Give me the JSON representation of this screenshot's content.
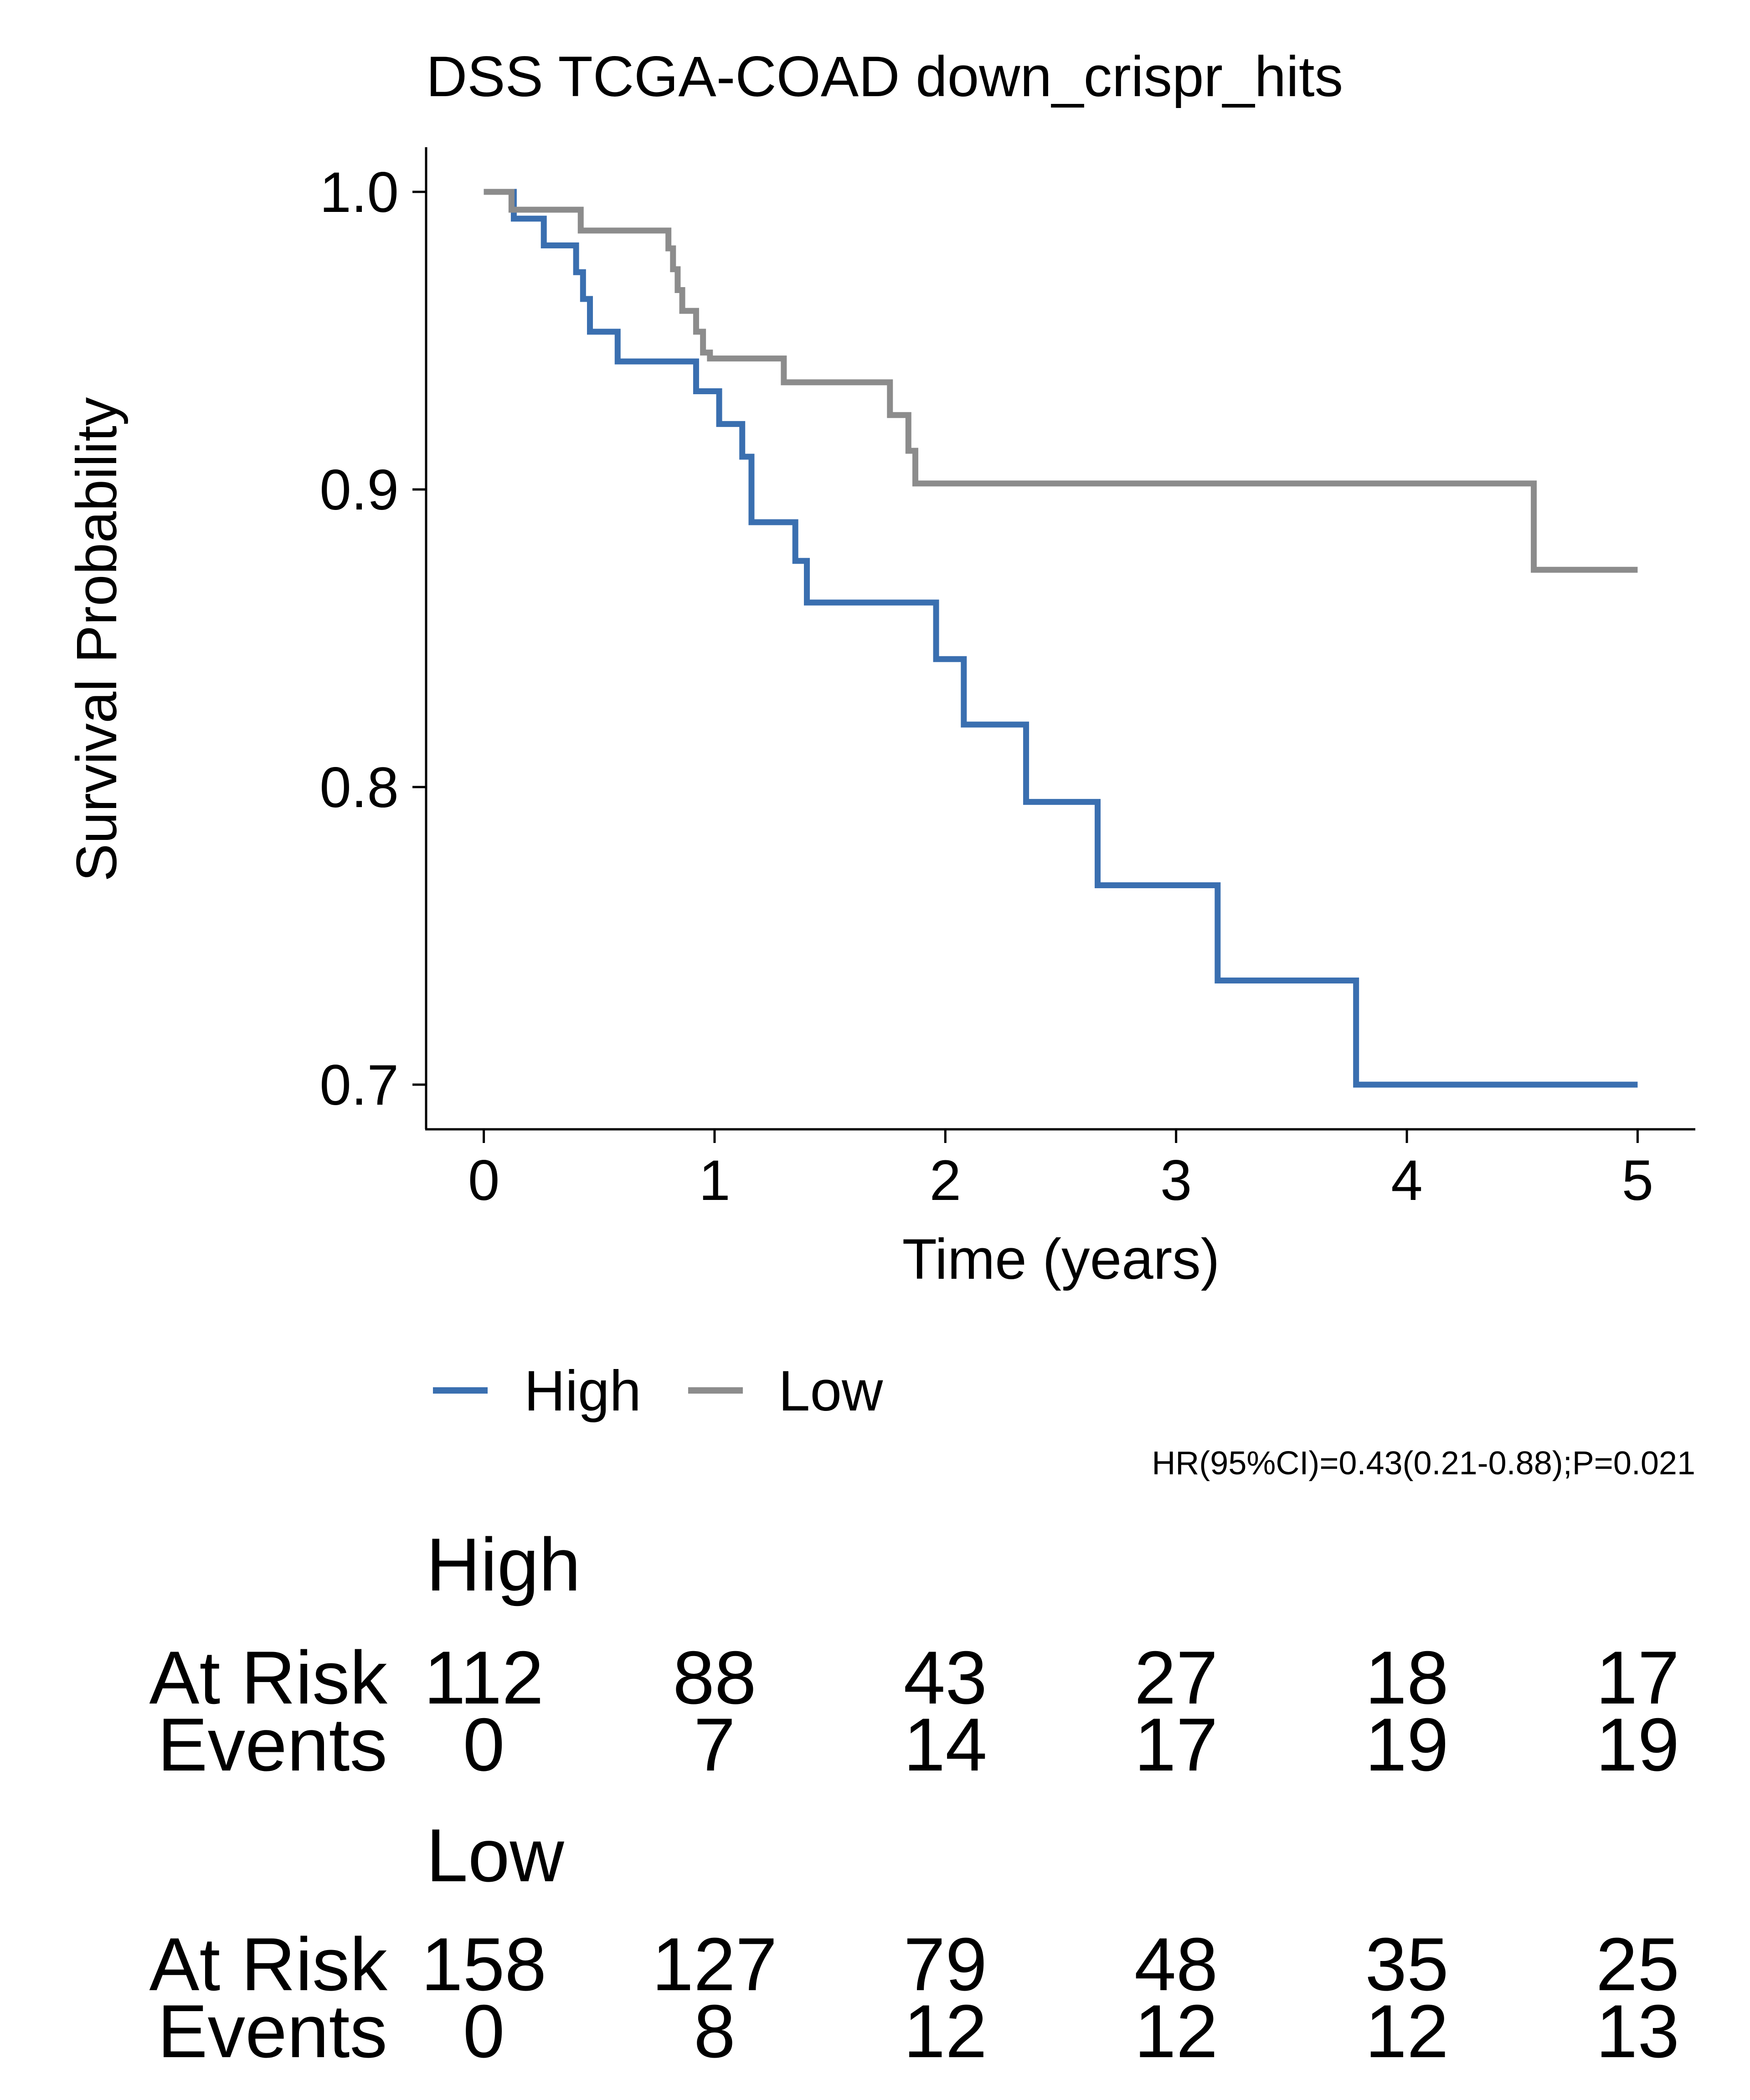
{
  "chart_data": {
    "type": "line",
    "title": "DSS TCGA-COAD down_crispr_hits",
    "xlabel": "Time (years)",
    "ylabel": "Survival Probability",
    "xlim": [
      -0.25,
      5.25
    ],
    "ylim": [
      0.685,
      1.015
    ],
    "xticks": [
      0,
      1,
      2,
      3,
      4,
      5
    ],
    "xtick_labels": [
      "0",
      "1",
      "2",
      "3",
      "4",
      "5"
    ],
    "yticks": [
      0.7,
      0.8,
      0.9,
      1.0
    ],
    "ytick_labels": [
      "0.7",
      "0.8",
      "0.9",
      "1.0"
    ],
    "grid": false,
    "legend_position": "bottom",
    "series": [
      {
        "name": "High",
        "color": "#3a6fb0",
        "step": "post",
        "x": [
          0,
          0.13,
          0.26,
          0.4,
          0.43,
          0.46,
          0.58,
          0.92,
          1.02,
          1.12,
          1.16,
          1.35,
          1.4,
          1.96,
          2.08,
          2.35,
          2.66,
          3.18,
          3.78,
          5.0
        ],
        "y": [
          1.0,
          0.991,
          0.982,
          0.973,
          0.964,
          0.953,
          0.943,
          0.933,
          0.922,
          0.911,
          0.889,
          0.876,
          0.862,
          0.843,
          0.821,
          0.795,
          0.767,
          0.735,
          0.7,
          0.7
        ]
      },
      {
        "name": "Low",
        "color": "#8c8c8c",
        "step": "post",
        "x": [
          0,
          0.12,
          0.42,
          0.8,
          0.82,
          0.84,
          0.86,
          0.92,
          0.95,
          0.98,
          1.3,
          1.76,
          1.84,
          1.87,
          4.55,
          5.0
        ],
        "y": [
          1.0,
          0.994,
          0.987,
          0.981,
          0.974,
          0.967,
          0.96,
          0.953,
          0.946,
          0.944,
          0.936,
          0.925,
          0.913,
          0.902,
          0.873,
          0.873
        ]
      }
    ],
    "annotation": "HR(95%CI)=0.43(0.21-0.88);P=0.021"
  },
  "risk_table": {
    "row_labels": {
      "at_risk": "At Risk",
      "events": "Events"
    },
    "groups": [
      {
        "name": "High",
        "at_risk": [
          "112",
          "88",
          "43",
          "27",
          "18",
          "17"
        ],
        "events": [
          "0",
          "7",
          "14",
          "17",
          "19",
          "19"
        ]
      },
      {
        "name": "Low",
        "at_risk": [
          "158",
          "127",
          "79",
          "48",
          "35",
          "25"
        ],
        "events": [
          "0",
          "8",
          "12",
          "12",
          "12",
          "13"
        ]
      }
    ]
  }
}
